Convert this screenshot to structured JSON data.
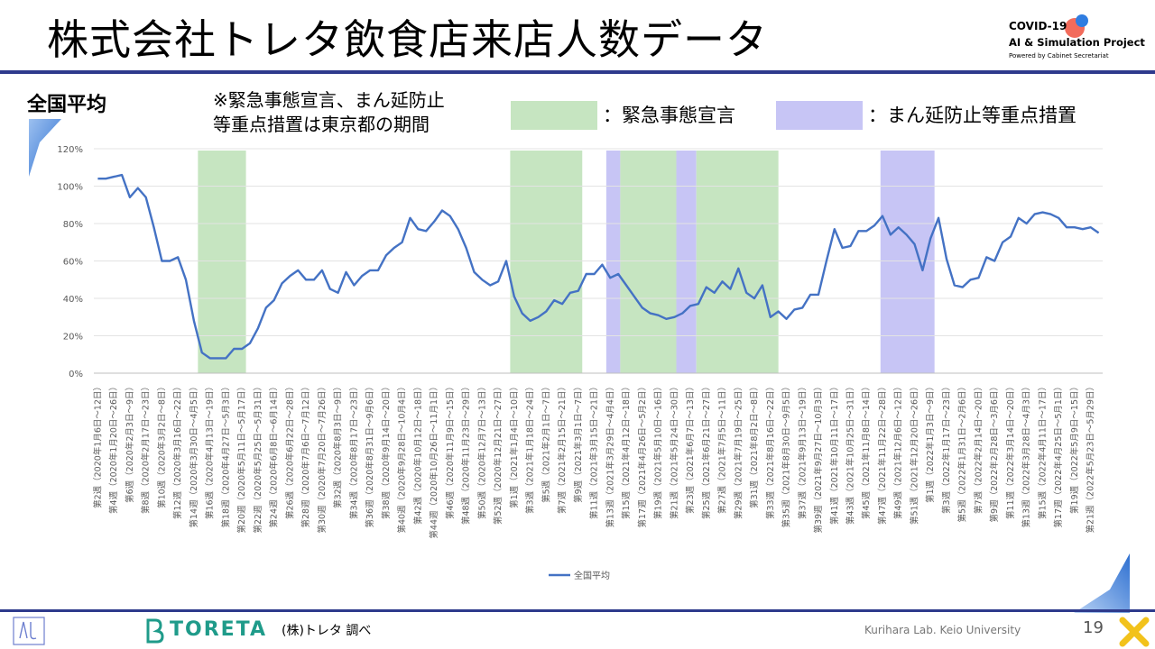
{
  "slide": {
    "title": "株式会社トレタ飲食店来店人数データ",
    "section": "全国平均",
    "note_line1": "※緊急事態宣言、まん延防止",
    "note_line2": "等重点措置は東京都の期間",
    "legend_emergency": "：緊急事態宣言",
    "legend_priority": "：まん延防止等重点措置",
    "logo_line1": "COVID-19",
    "logo_line2": "AI & Simulation Project",
    "logo_line3": "Powered by Cabinet Secretariat",
    "brand": "TORETA",
    "source": "(株)トレタ 調べ",
    "lab": "Kurihara Lab. Keio University",
    "page_number": "19",
    "colors": {
      "rule": "#2e3a8c",
      "emergency": "#c6e5c1",
      "priority": "#c7c5f5",
      "line": "#4472c4",
      "brand": "#1f9b8a"
    }
  },
  "chart_data": {
    "type": "line",
    "series": [
      {
        "name": "全国平均",
        "values": [
          104,
          104,
          105,
          106,
          94,
          99,
          94,
          78,
          60,
          60,
          62,
          50,
          28,
          11,
          8,
          8,
          8,
          13,
          13,
          16,
          24,
          35,
          39,
          48,
          52,
          55,
          50,
          50,
          55,
          45,
          43,
          54,
          47,
          52,
          55,
          55,
          63,
          67,
          70,
          83,
          77,
          76,
          81,
          87,
          84,
          77,
          67,
          54,
          50,
          47,
          49,
          60,
          41,
          32,
          28,
          30,
          33,
          39,
          37,
          43,
          44,
          53,
          53,
          58,
          51,
          53,
          47,
          41,
          35,
          32,
          31,
          29,
          30,
          32,
          36,
          37,
          46,
          43,
          49,
          45,
          56,
          43,
          40,
          47,
          30,
          33,
          29,
          34,
          35,
          42,
          42,
          60,
          77,
          67,
          68,
          76,
          76,
          79,
          84,
          74,
          78,
          74,
          69,
          55,
          72,
          83,
          61,
          47,
          46,
          50,
          51,
          62,
          60,
          70,
          73,
          83,
          80,
          85,
          86,
          85,
          83,
          78,
          78,
          77,
          78,
          75
        ]
      }
    ],
    "y_ticks": [
      "0%",
      "20%",
      "40%",
      "60%",
      "80%",
      "100%",
      "120%"
    ],
    "ylim": [
      0,
      120
    ],
    "grid": true,
    "legend": "bottom",
    "x_labels": [
      "第2週（2020年1月6日～12日）",
      "第4週（2020年1月20日～26日）",
      "第6週（2020年2月3日～9日）",
      "第8週（2020年2月17日～23日）",
      "第10週（2020年3月2日～8日）",
      "第12週（2020年3月16日～22日）",
      "第14週（2020年3月30日～4月5日）",
      "第16週（2020年4月13日～19日）",
      "第18週（2020年4月27日～5月3日）",
      "第20週（2020年5月11日～5月17日）",
      "第22週（2020年5月25日～5月31日）",
      "第24週（2020年6月8日～6月14日）",
      "第26週（2020年6月22日～28日）",
      "第28週（2020年7月6日～7月12日）",
      "第30週（2020年7月20日～7月26日）",
      "第32週（2020年8月3日～9日）",
      "第34週（2020年8月17日～23日）",
      "第36週（2020年8月31日～9月6日）",
      "第38週（2020年9月14日～20日）",
      "第40週（2020年9月28日～10月4日）",
      "第42週（2020年10月12日～18日）",
      "第44週（2020年10月26日～11月1日）",
      "第46週（2020年11月9日～15日）",
      "第48週（2020年11月23日～29日）",
      "第50週（2020年12月7日～13日）",
      "第52週（2020年12月21日～27日）",
      "第1週（2021年1月4日～10日）",
      "第3週（2021年1月18日～24日）",
      "第5週（2021年2月1日～7日）",
      "第7週（2021年2月15日～21日）",
      "第9週（2021年3月1日～7日）",
      "第11週（2021年3月15日～21日）",
      "第13週（2021年3月29日～4月4日）",
      "第15週（2021年4月12日～18日）",
      "第17週（2021年4月26日～5月2日）",
      "第19週（2021年5月10日～16日）",
      "第21週（2021年5月24日～30日）",
      "第23週（2021年6月7日～13日）",
      "第25週（2021年6月21日～27日）",
      "第27週（2021年7月5日～11日）",
      "第29週（2021年7月19日～25日）",
      "第31週（2021年8月2日～8日）",
      "第33週（2021年8月16日～22日）",
      "第35週（2021年8月30日～9月5日）",
      "第37週（2021年9月13日～19日）",
      "第39週（2021年9月27日～10月3日）",
      "第41週（2021年10月11日～17日）",
      "第43週（2021年10月25日～31日）",
      "第45週（2021年11月8日～14日）",
      "第47週（2021年11月22日～28日）",
      "第49週（2021年12月6日～12日）",
      "第51週（2021年12月20日～26日）",
      "第1週（2022年1月3日～9日）",
      "第3週（2022年1月17日～23日）",
      "第5週（2022年1月31日～2月6日）",
      "第7週（2022年2月14日～20日）",
      "第9週（2022年2月28日～3月6日）",
      "第11週（2022年3月14日～20日）",
      "第13週（2022年3月28日～4月3日）",
      "第15週（2022年4月11日～17日）",
      "第17週（2022年4月25日～5月1日）",
      "第19週（2022年5月9日～15日）",
      "第21週（2022年5月23日～5月29日）"
    ],
    "periods": [
      {
        "type": "emergency",
        "from": 12.5,
        "to": 18.5
      },
      {
        "type": "emergency",
        "from": 51.5,
        "to": 60.5
      },
      {
        "type": "priority",
        "from": 63.5,
        "to": 65.25
      },
      {
        "type": "emergency",
        "from": 65.25,
        "to": 72.25
      },
      {
        "type": "priority",
        "from": 72.25,
        "to": 74.75
      },
      {
        "type": "emergency",
        "from": 74.75,
        "to": 85
      },
      {
        "type": "priority",
        "from": 97.75,
        "to": 104.5
      }
    ]
  }
}
